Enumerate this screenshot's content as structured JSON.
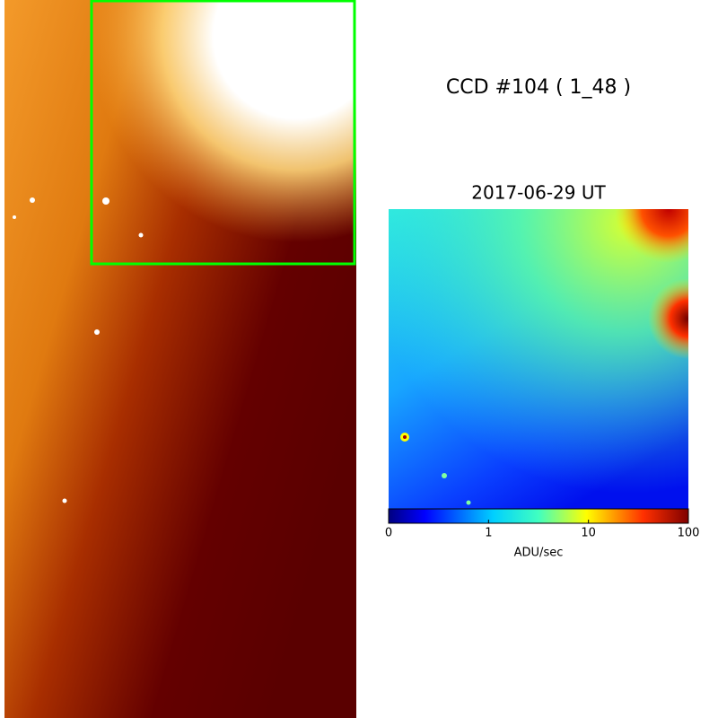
{
  "title": "CCD #104 ( 1_48 )",
  "image": {
    "date": "2017-06-29 UT"
  },
  "colorbar": {
    "label": "ADU/sec",
    "scale": "symlog",
    "range": [
      0,
      100
    ],
    "ticks": [
      0,
      1,
      10,
      100
    ]
  }
}
